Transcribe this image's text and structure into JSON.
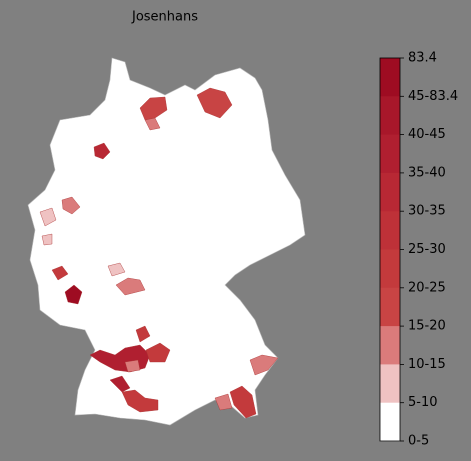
{
  "title": "Josenhans",
  "legend": {
    "labels": [
      "83.4",
      "45-83.4",
      "40-45",
      "35-40",
      "30-35",
      "25-30",
      "20-25",
      "15-20",
      "10-15",
      "5-10",
      "0-5"
    ],
    "colors": [
      "#9e0c22",
      "#a8172a",
      "#b01f30",
      "#b82834",
      "#be3138",
      "#c33a3c",
      "#c84444",
      "#da7b7b",
      "#efc2c2",
      "#ffffff"
    ]
  }
}
